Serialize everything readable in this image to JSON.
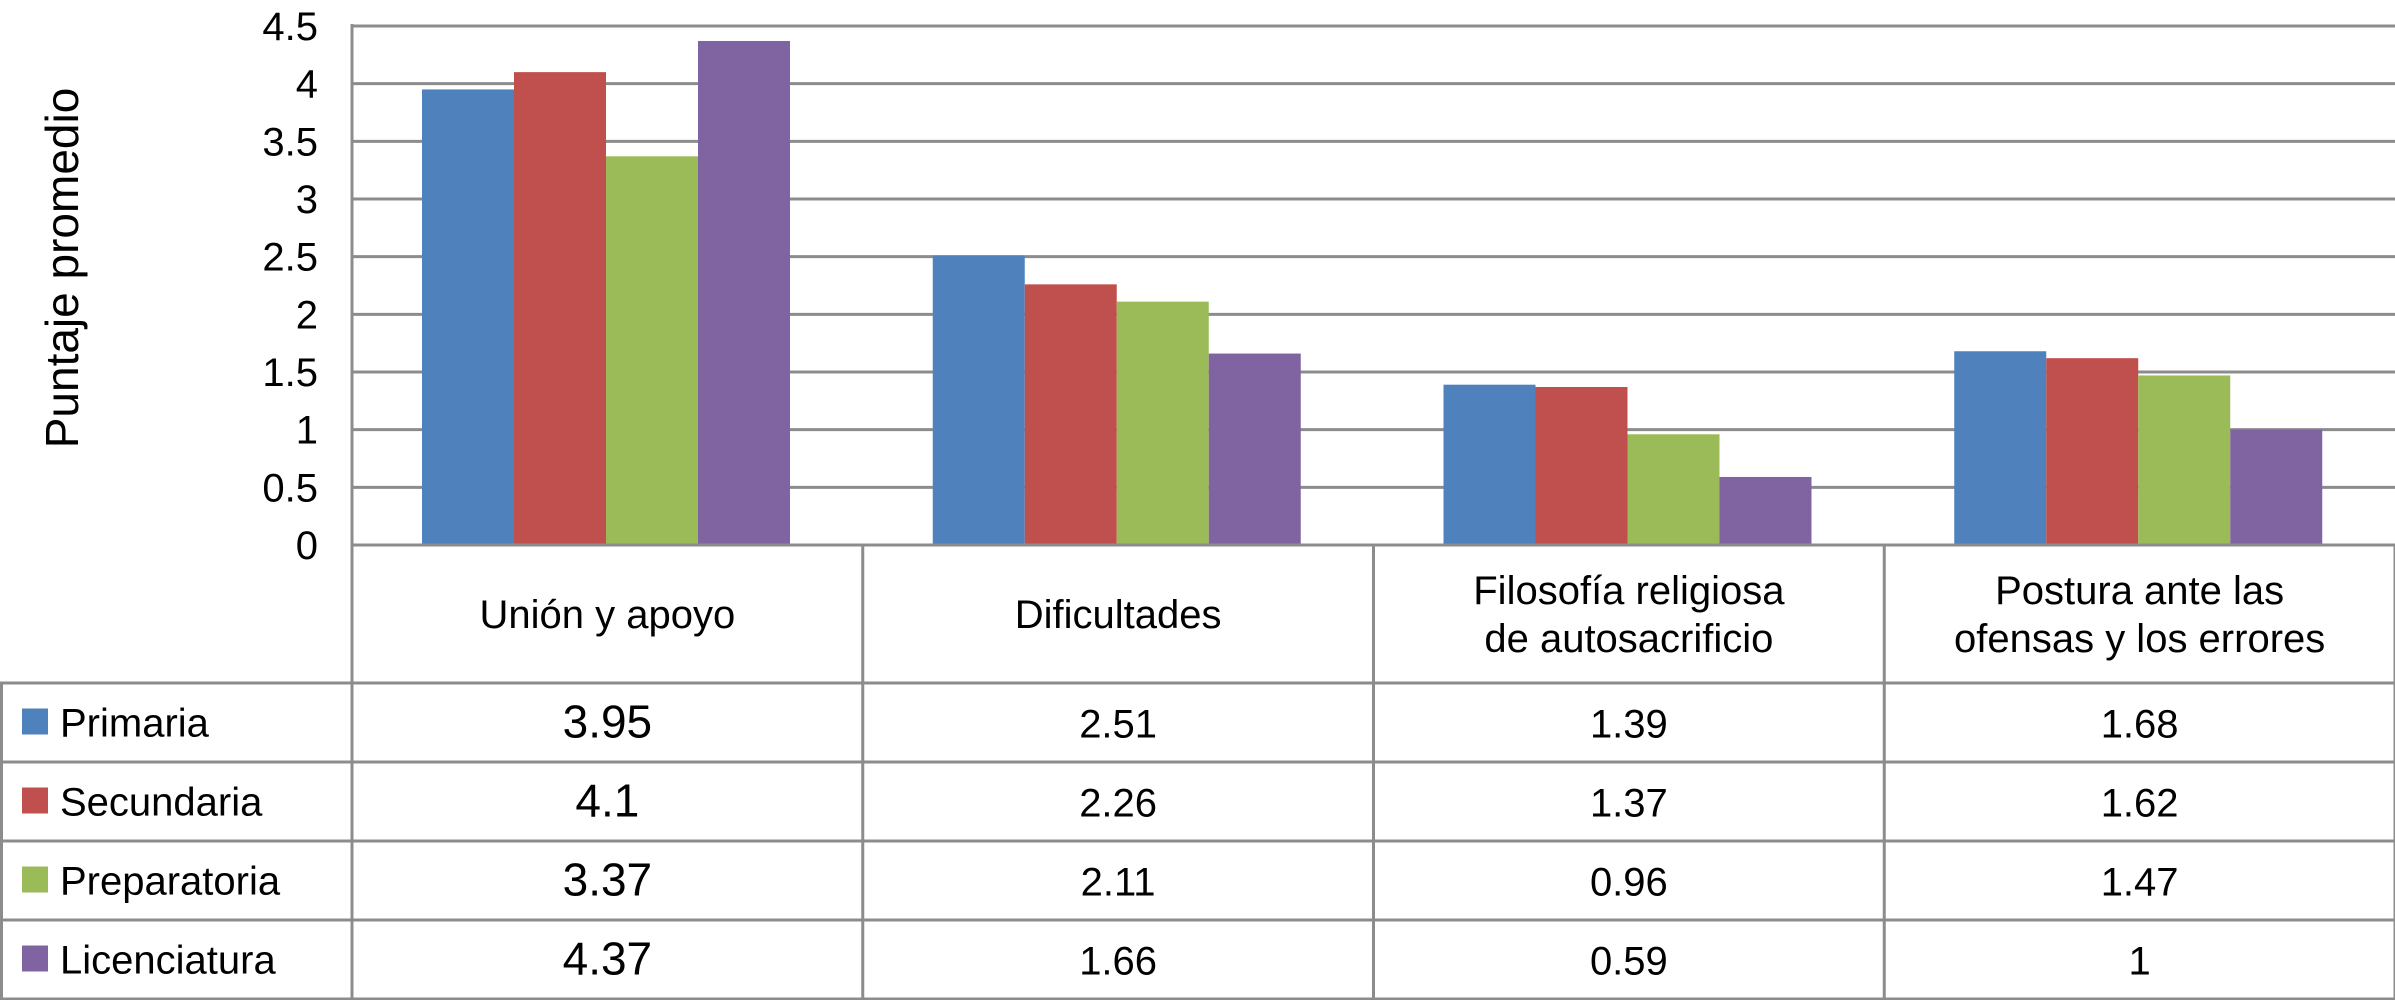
{
  "chart_data": {
    "type": "bar",
    "ylabel": "Puntaje promedio",
    "ylim": [
      0,
      4.5
    ],
    "yticks": [
      "0",
      "0.5",
      "1",
      "1.5",
      "2",
      "2.5",
      "3",
      "3.5",
      "4",
      "4.5"
    ],
    "grid": true,
    "legend": "data table below chart",
    "categories": [
      [
        "Unión y apoyo"
      ],
      [
        "Dificultades"
      ],
      [
        "Filosofía religiosa",
        "de autosacrificio"
      ],
      [
        "Postura ante las",
        "ofensas y los errores"
      ]
    ],
    "series": [
      {
        "name": "Primaria",
        "color": "#4F81BD",
        "values": [
          3.95,
          2.51,
          1.39,
          1.68
        ],
        "labels": [
          "3.95",
          "2.51",
          "1.39",
          "1.68"
        ]
      },
      {
        "name": "Secundaria",
        "color": "#C0504D",
        "values": [
          4.1,
          2.26,
          1.37,
          1.62
        ],
        "labels": [
          "4.1",
          "2.26",
          "1.37",
          "1.62"
        ]
      },
      {
        "name": "Preparatoria",
        "color": "#9BBB59",
        "values": [
          3.37,
          2.11,
          0.96,
          1.47
        ],
        "labels": [
          "3.37",
          "2.11",
          "0.96",
          "1.47"
        ]
      },
      {
        "name": "Licenciatura",
        "color": "#8064A2",
        "values": [
          4.37,
          1.66,
          0.59,
          1
        ],
        "labels": [
          "4.37",
          "1.66",
          "0.59",
          "1"
        ]
      }
    ]
  }
}
